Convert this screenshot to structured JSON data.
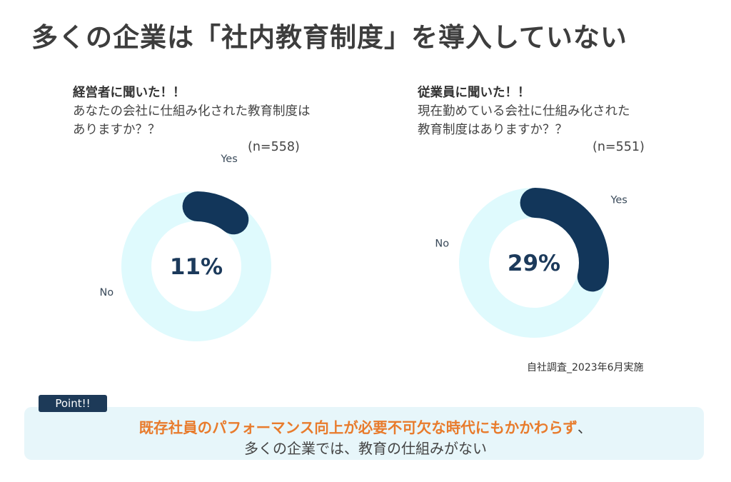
{
  "title": "多くの企業は「社内教育制度」を導入していない",
  "colors": {
    "yes": "#12365a",
    "no": "#dffafd",
    "accent": "#e87b2c",
    "text": "#3d3d3d"
  },
  "survey_left": {
    "lead": "経営者に聞いた！！",
    "question": "あなたの会社に仕組み化された教育制度はありますか？？",
    "n_label": "(n=558)"
  },
  "survey_right": {
    "lead": "従業員に聞いた！！",
    "question_line1": "現在勤めている会社に仕組み化された",
    "question_line2": "教育制度はありますか？？",
    "n_label": "(n=551)"
  },
  "chart_data": [
    {
      "type": "pie",
      "subtype": "donut",
      "categories": [
        "Yes",
        "No"
      ],
      "values": [
        11,
        89
      ],
      "center_label": "11%",
      "slice_labels": [
        "Yes",
        "No"
      ]
    },
    {
      "type": "pie",
      "subtype": "donut",
      "categories": [
        "Yes",
        "No"
      ],
      "values": [
        29,
        71
      ],
      "center_label": "29%",
      "slice_labels": [
        "Yes",
        "No"
      ]
    }
  ],
  "source": "自社調査_2023年6月実施",
  "point": {
    "tag": "Point!!",
    "highlight": "既存社員のパフォーマンス向上が必要不可欠な時代にもかかわらず",
    "highlight_tail": "、",
    "line2": "多くの企業では、教育の仕組みがない"
  }
}
